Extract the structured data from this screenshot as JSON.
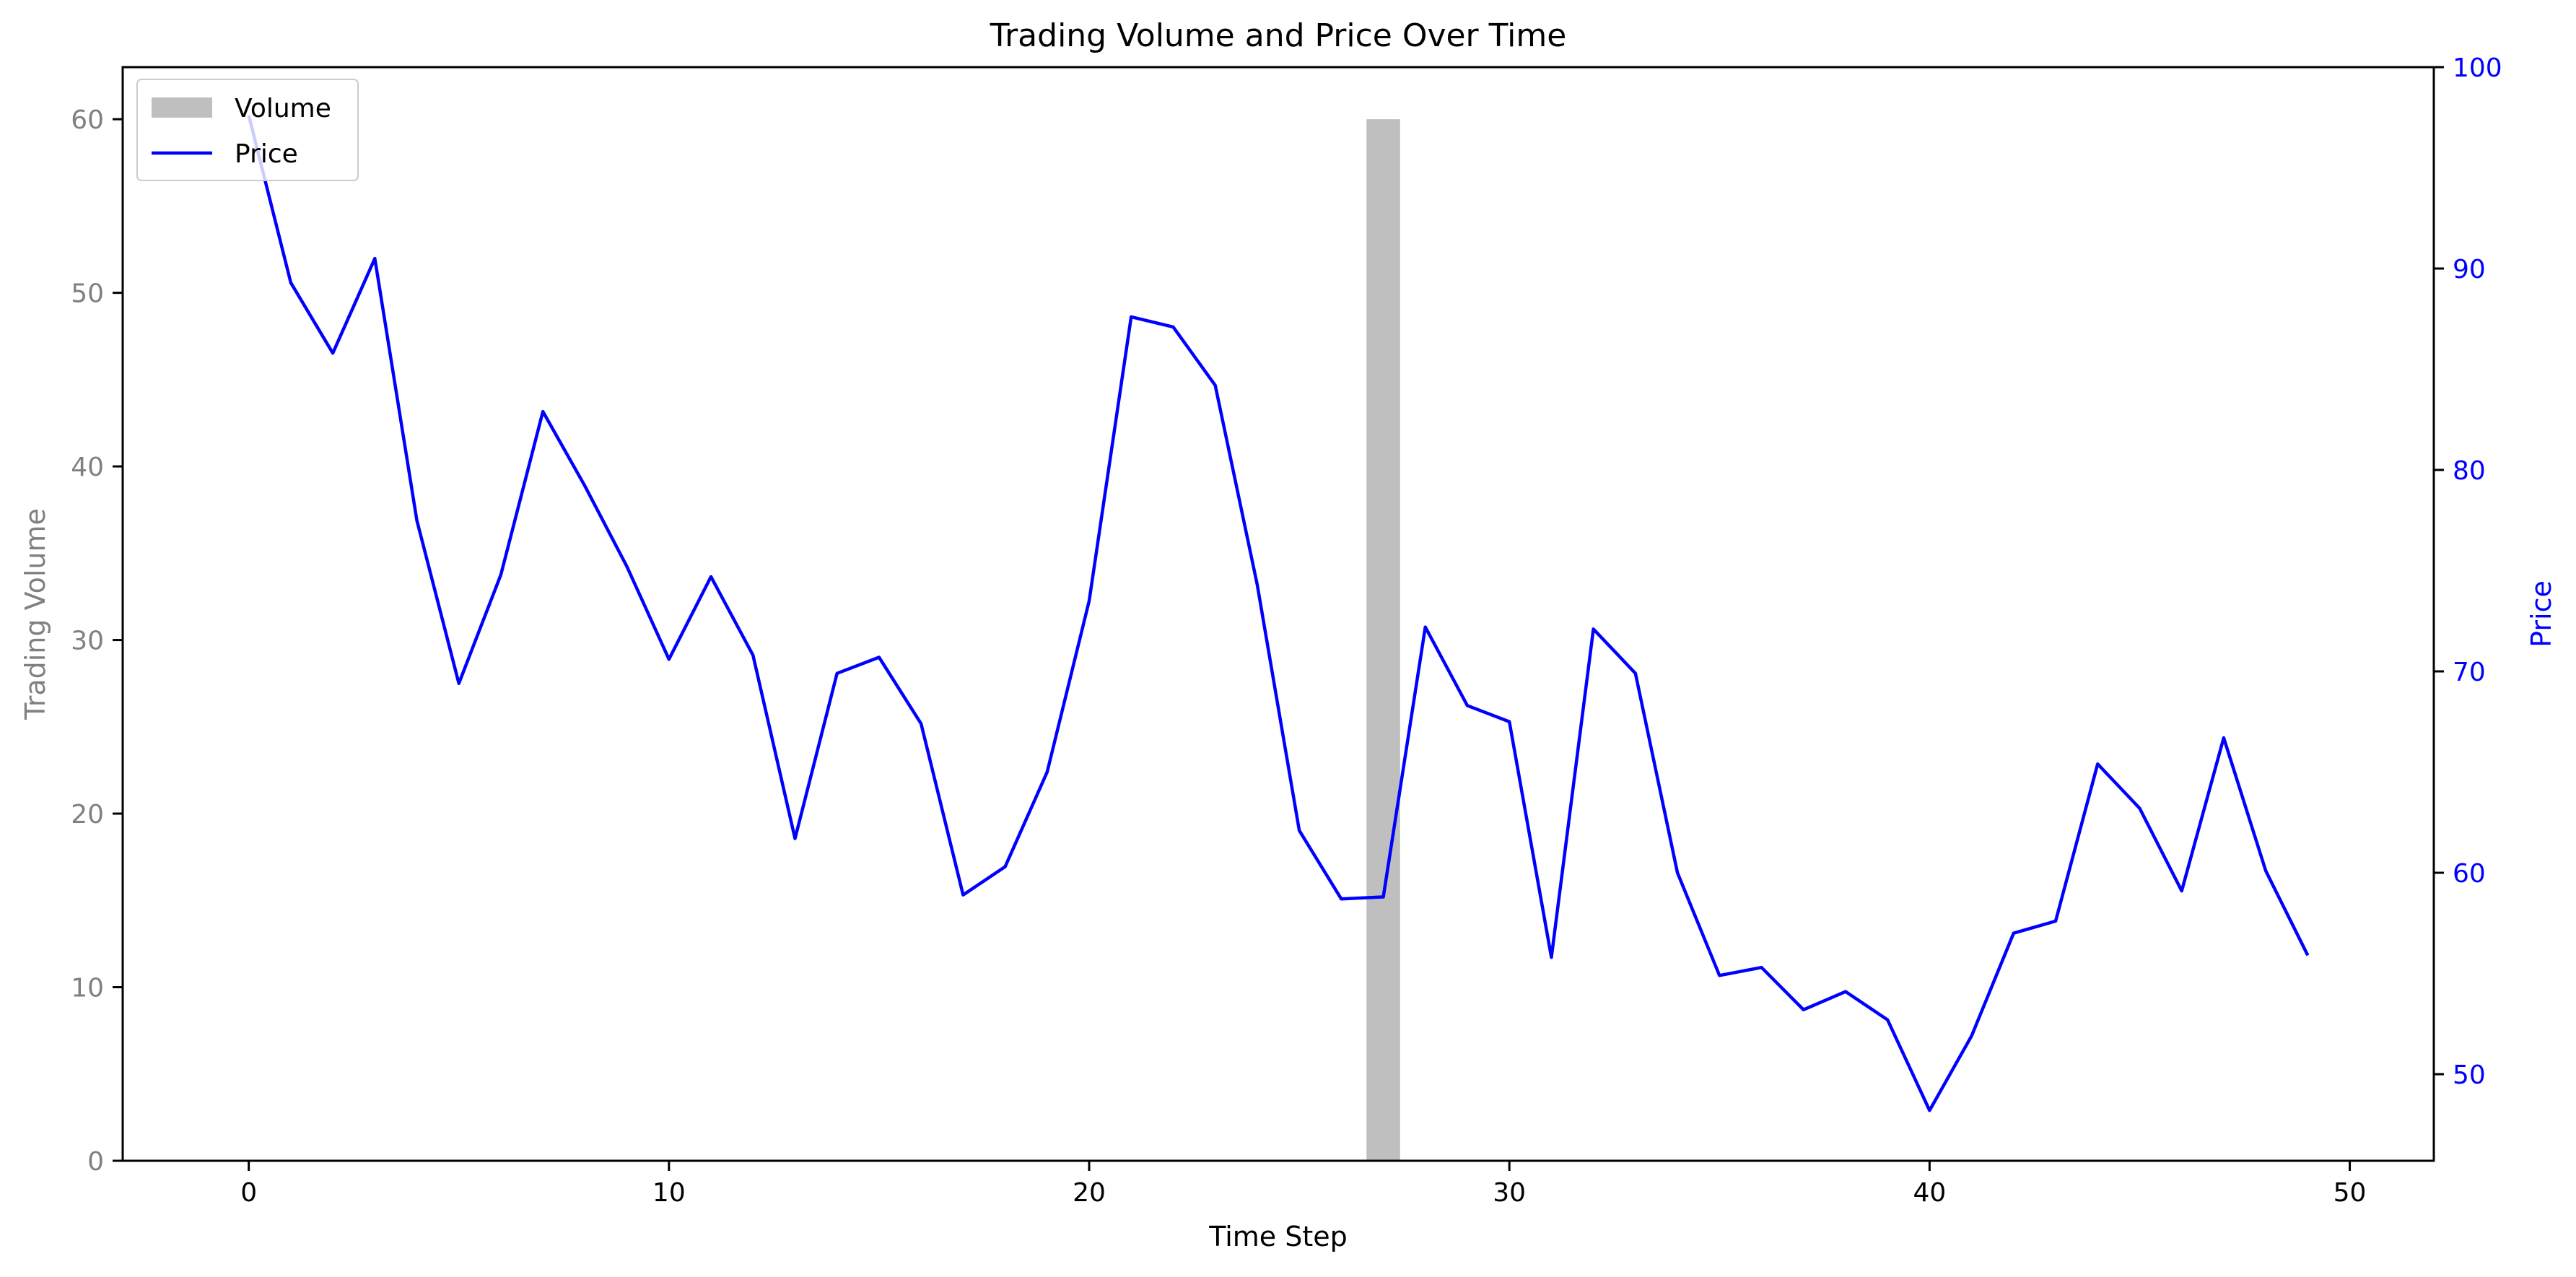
{
  "chart_data": {
    "type": "bar+line",
    "title": "Trading Volume and Price Over Time",
    "xlabel": "Time Step",
    "ylabel_left": "Trading Volume",
    "ylabel_right": "Price",
    "xlim": [
      -3,
      52
    ],
    "ylim_left": [
      0,
      63
    ],
    "ylim_right": [
      45.7,
      100
    ],
    "xticks": [
      0,
      10,
      20,
      30,
      40,
      50
    ],
    "yticks_left": [
      0,
      10,
      20,
      30,
      40,
      50,
      60
    ],
    "yticks_right": [
      50,
      60,
      70,
      80,
      90,
      100
    ],
    "grid": false,
    "legend": {
      "placement": "top-left",
      "entries": [
        "Volume",
        "Price"
      ]
    },
    "colors": {
      "volume": "#bfbfbf",
      "price": "#0000ff",
      "left_axis": "#808080",
      "right_axis": "#0000ff"
    },
    "volume": {
      "name": "Volume",
      "x": [
        27
      ],
      "values": [
        60
      ],
      "bar_width": 0.8
    },
    "price": {
      "name": "Price",
      "x": [
        0,
        1,
        2,
        3,
        4,
        5,
        6,
        7,
        8,
        9,
        10,
        11,
        12,
        13,
        14,
        15,
        16,
        17,
        18,
        19,
        20,
        21,
        22,
        23,
        24,
        25,
        26,
        27,
        28,
        29,
        30,
        31,
        32,
        33,
        34,
        35,
        36,
        37,
        38,
        39,
        40,
        41,
        42,
        43,
        44,
        45,
        46,
        47,
        48,
        49
      ],
      "values": [
        97.6,
        89.3,
        85.8,
        90.5,
        77.5,
        69.4,
        74.8,
        82.9,
        79.2,
        75.2,
        70.6,
        74.7,
        70.8,
        61.7,
        69.9,
        70.7,
        67.4,
        58.9,
        60.3,
        65.0,
        73.5,
        87.6,
        87.1,
        84.2,
        74.3,
        62.1,
        58.7,
        58.8,
        72.2,
        68.3,
        67.5,
        55.8,
        72.1,
        69.9,
        60.0,
        54.9,
        55.3,
        53.2,
        54.1,
        52.7,
        48.2,
        51.9,
        57.0,
        57.6,
        65.4,
        63.2,
        59.1,
        66.7,
        60.1,
        55.9
      ]
    }
  }
}
